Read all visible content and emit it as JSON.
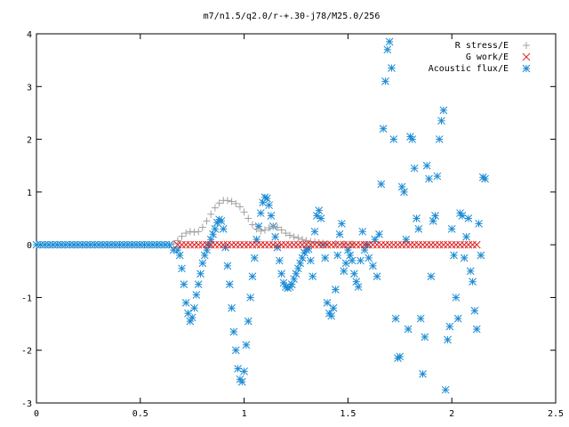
{
  "chart_data": {
    "type": "scatter",
    "title": "m7/n1.5/q2.0/r-+.30-j78/M25.0/256",
    "xlim": [
      0,
      2.5
    ],
    "ylim": [
      -3,
      4
    ],
    "x_ticks": [
      0,
      0.5,
      1,
      1.5,
      2,
      2.5
    ],
    "x_tick_labels": [
      "0",
      "0.5",
      "1",
      "1.5",
      "2",
      "2.5"
    ],
    "y_ticks": [
      -3,
      -2,
      -1,
      0,
      1,
      2,
      3,
      4
    ],
    "y_tick_labels": [
      "-3",
      "-2",
      "-1",
      "0",
      "1",
      "2",
      "3",
      "4"
    ],
    "grid": false,
    "legend_position": "top-right",
    "series": [
      {
        "name": "R stress/E",
        "marker": "plus",
        "color": "#a0a0a0",
        "points": [
          [
            0.66,
            0.02
          ],
          [
            0.68,
            0.08
          ],
          [
            0.7,
            0.16
          ],
          [
            0.72,
            0.22
          ],
          [
            0.74,
            0.25
          ],
          [
            0.76,
            0.24
          ],
          [
            0.78,
            0.25
          ],
          [
            0.8,
            0.33
          ],
          [
            0.82,
            0.45
          ],
          [
            0.84,
            0.58
          ],
          [
            0.86,
            0.7
          ],
          [
            0.88,
            0.79
          ],
          [
            0.9,
            0.84
          ],
          [
            0.92,
            0.84
          ],
          [
            0.94,
            0.82
          ],
          [
            0.96,
            0.78
          ],
          [
            0.98,
            0.72
          ],
          [
            1.0,
            0.62
          ],
          [
            1.02,
            0.5
          ],
          [
            1.04,
            0.38
          ],
          [
            1.06,
            0.3
          ],
          [
            1.08,
            0.26
          ],
          [
            1.1,
            0.28
          ],
          [
            1.12,
            0.32
          ],
          [
            1.14,
            0.35
          ],
          [
            1.16,
            0.33
          ],
          [
            1.18,
            0.28
          ],
          [
            1.2,
            0.22
          ],
          [
            1.22,
            0.18
          ],
          [
            1.24,
            0.15
          ],
          [
            1.26,
            0.13
          ],
          [
            1.28,
            0.1
          ],
          [
            1.3,
            0.08
          ],
          [
            1.32,
            0.06
          ],
          [
            1.34,
            0.05
          ],
          [
            1.36,
            0.04
          ],
          [
            1.38,
            0.03
          ],
          [
            1.4,
            0.02
          ],
          [
            1.44,
            0.02
          ],
          [
            1.48,
            0.01
          ],
          [
            1.52,
            0.01
          ]
        ]
      },
      {
        "name": "G work/E",
        "marker": "cross",
        "color": "#dd2222",
        "points": [
          [
            0.68,
            0.0
          ],
          [
            0.7,
            0.0
          ],
          [
            0.72,
            0.0
          ],
          [
            0.74,
            0.0
          ],
          [
            0.76,
            0.0
          ],
          [
            0.78,
            0.0
          ],
          [
            0.8,
            0.0
          ],
          [
            0.82,
            0.0
          ],
          [
            0.84,
            0.0
          ],
          [
            0.86,
            0.0
          ],
          [
            0.88,
            0.0
          ],
          [
            0.9,
            0.0
          ],
          [
            0.92,
            0.0
          ],
          [
            0.94,
            0.0
          ],
          [
            0.96,
            0.0
          ],
          [
            0.98,
            0.0
          ],
          [
            1.0,
            0.0
          ],
          [
            1.02,
            0.0
          ],
          [
            1.04,
            0.0
          ],
          [
            1.06,
            0.0
          ],
          [
            1.08,
            0.0
          ],
          [
            1.1,
            0.0
          ],
          [
            1.12,
            0.0
          ],
          [
            1.14,
            0.0
          ],
          [
            1.16,
            0.0
          ],
          [
            1.18,
            0.0
          ],
          [
            1.2,
            0.0
          ],
          [
            1.22,
            0.0
          ],
          [
            1.24,
            0.0
          ],
          [
            1.26,
            0.0
          ],
          [
            1.28,
            0.0
          ],
          [
            1.3,
            0.0
          ],
          [
            1.32,
            0.0
          ],
          [
            1.34,
            0.0
          ],
          [
            1.36,
            0.0
          ],
          [
            1.38,
            0.0
          ],
          [
            1.4,
            0.0
          ],
          [
            1.42,
            0.0
          ],
          [
            1.44,
            0.0
          ],
          [
            1.46,
            0.0
          ],
          [
            1.48,
            0.0
          ],
          [
            1.5,
            0.0
          ],
          [
            1.52,
            0.0
          ],
          [
            1.54,
            0.0
          ],
          [
            1.56,
            0.0
          ],
          [
            1.58,
            0.0
          ],
          [
            1.6,
            0.0
          ],
          [
            1.62,
            0.0
          ],
          [
            1.64,
            0.0
          ],
          [
            1.66,
            0.0
          ],
          [
            1.68,
            0.0
          ],
          [
            1.7,
            0.0
          ],
          [
            1.72,
            0.0
          ],
          [
            1.74,
            0.0
          ],
          [
            1.76,
            0.0
          ],
          [
            1.78,
            0.0
          ],
          [
            1.8,
            0.0
          ],
          [
            1.82,
            0.0
          ],
          [
            1.84,
            0.0
          ],
          [
            1.86,
            0.0
          ],
          [
            1.88,
            0.0
          ],
          [
            1.9,
            0.0
          ],
          [
            1.92,
            0.0
          ],
          [
            1.94,
            0.0
          ],
          [
            1.96,
            0.0
          ],
          [
            1.98,
            0.0
          ],
          [
            2.0,
            0.0
          ],
          [
            2.02,
            0.0
          ],
          [
            2.04,
            0.0
          ],
          [
            2.06,
            0.0
          ],
          [
            2.08,
            0.0
          ],
          [
            2.1,
            0.0
          ],
          [
            2.12,
            0.0
          ]
        ]
      },
      {
        "name": "Acoustic flux/E",
        "marker": "star",
        "color": "#1a8ad4",
        "points": [
          [
            0.0,
            0.0
          ],
          [
            0.02,
            0.0
          ],
          [
            0.04,
            0.0
          ],
          [
            0.06,
            0.0
          ],
          [
            0.08,
            0.0
          ],
          [
            0.1,
            0.0
          ],
          [
            0.12,
            0.0
          ],
          [
            0.14,
            0.0
          ],
          [
            0.16,
            0.0
          ],
          [
            0.18,
            0.0
          ],
          [
            0.2,
            0.0
          ],
          [
            0.22,
            0.0
          ],
          [
            0.24,
            0.0
          ],
          [
            0.26,
            0.0
          ],
          [
            0.28,
            0.0
          ],
          [
            0.3,
            0.0
          ],
          [
            0.32,
            0.0
          ],
          [
            0.34,
            0.0
          ],
          [
            0.36,
            0.0
          ],
          [
            0.38,
            0.0
          ],
          [
            0.4,
            0.0
          ],
          [
            0.42,
            0.0
          ],
          [
            0.44,
            0.0
          ],
          [
            0.46,
            0.0
          ],
          [
            0.48,
            0.0
          ],
          [
            0.5,
            0.0
          ],
          [
            0.52,
            0.0
          ],
          [
            0.54,
            0.0
          ],
          [
            0.56,
            0.0
          ],
          [
            0.58,
            0.0
          ],
          [
            0.6,
            0.0
          ],
          [
            0.62,
            0.0
          ],
          [
            0.64,
            0.0
          ],
          [
            0.66,
            -0.1
          ],
          [
            0.68,
            -0.1
          ],
          [
            0.69,
            -0.2
          ],
          [
            0.7,
            -0.45
          ],
          [
            0.71,
            -0.75
          ],
          [
            0.72,
            -1.1
          ],
          [
            0.73,
            -1.3
          ],
          [
            0.74,
            -1.45
          ],
          [
            0.75,
            -1.38
          ],
          [
            0.76,
            -1.2
          ],
          [
            0.77,
            -0.95
          ],
          [
            0.78,
            -0.75
          ],
          [
            0.79,
            -0.55
          ],
          [
            0.8,
            -0.35
          ],
          [
            0.81,
            -0.2
          ],
          [
            0.82,
            -0.1
          ],
          [
            0.83,
            0.0
          ],
          [
            0.84,
            0.1
          ],
          [
            0.85,
            0.2
          ],
          [
            0.86,
            0.3
          ],
          [
            0.87,
            0.42
          ],
          [
            0.88,
            0.48
          ],
          [
            0.89,
            0.45
          ],
          [
            0.9,
            0.3
          ],
          [
            0.91,
            -0.05
          ],
          [
            0.92,
            -0.4
          ],
          [
            0.93,
            -0.75
          ],
          [
            0.94,
            -1.2
          ],
          [
            0.95,
            -1.65
          ],
          [
            0.96,
            -2.0
          ],
          [
            0.97,
            -2.35
          ],
          [
            0.98,
            -2.55
          ],
          [
            0.99,
            -2.6
          ],
          [
            1.0,
            -2.4
          ],
          [
            1.01,
            -1.9
          ],
          [
            1.02,
            -1.45
          ],
          [
            1.03,
            -1.0
          ],
          [
            1.04,
            -0.6
          ],
          [
            1.05,
            -0.25
          ],
          [
            1.06,
            0.1
          ],
          [
            1.07,
            0.35
          ],
          [
            1.08,
            0.6
          ],
          [
            1.09,
            0.8
          ],
          [
            1.1,
            0.9
          ],
          [
            1.11,
            0.88
          ],
          [
            1.12,
            0.75
          ],
          [
            1.13,
            0.55
          ],
          [
            1.14,
            0.35
          ],
          [
            1.15,
            0.15
          ],
          [
            1.16,
            -0.05
          ],
          [
            1.17,
            -0.3
          ],
          [
            1.18,
            -0.55
          ],
          [
            1.19,
            -0.72
          ],
          [
            1.2,
            -0.8
          ],
          [
            1.21,
            -0.82
          ],
          [
            1.22,
            -0.8
          ],
          [
            1.23,
            -0.75
          ],
          [
            1.24,
            -0.65
          ],
          [
            1.25,
            -0.55
          ],
          [
            1.26,
            -0.45
          ],
          [
            1.27,
            -0.35
          ],
          [
            1.28,
            -0.25
          ],
          [
            1.29,
            -0.15
          ],
          [
            1.3,
            -0.1
          ],
          [
            1.31,
            -0.08
          ],
          [
            1.32,
            -0.3
          ],
          [
            1.33,
            -0.6
          ],
          [
            1.34,
            0.25
          ],
          [
            1.35,
            0.55
          ],
          [
            1.36,
            0.65
          ],
          [
            1.37,
            0.5
          ],
          [
            1.38,
            0.0
          ],
          [
            1.39,
            -0.25
          ],
          [
            1.4,
            -1.1
          ],
          [
            1.41,
            -1.3
          ],
          [
            1.42,
            -1.35
          ],
          [
            1.43,
            -1.2
          ],
          [
            1.44,
            -0.85
          ],
          [
            1.45,
            -0.2
          ],
          [
            1.46,
            0.2
          ],
          [
            1.47,
            0.4
          ],
          [
            1.48,
            -0.5
          ],
          [
            1.49,
            -0.35
          ],
          [
            1.5,
            -0.1
          ],
          [
            1.51,
            -0.2
          ],
          [
            1.52,
            -0.3
          ],
          [
            1.53,
            -0.55
          ],
          [
            1.54,
            -0.7
          ],
          [
            1.55,
            -0.8
          ],
          [
            1.56,
            -0.3
          ],
          [
            1.57,
            0.25
          ],
          [
            1.58,
            -0.1
          ],
          [
            1.59,
            0.0
          ],
          [
            1.6,
            -0.25
          ],
          [
            1.62,
            -0.4
          ],
          [
            1.63,
            0.1
          ],
          [
            1.64,
            -0.6
          ],
          [
            1.65,
            0.2
          ],
          [
            1.66,
            1.15
          ],
          [
            1.67,
            2.2
          ],
          [
            1.68,
            3.1
          ],
          [
            1.69,
            3.7
          ],
          [
            1.7,
            3.85
          ],
          [
            1.71,
            3.35
          ],
          [
            1.72,
            2.0
          ],
          [
            1.73,
            -1.4
          ],
          [
            1.74,
            -2.15
          ],
          [
            1.75,
            -2.12
          ],
          [
            1.76,
            1.1
          ],
          [
            1.77,
            1.0
          ],
          [
            1.78,
            0.1
          ],
          [
            1.79,
            -1.6
          ],
          [
            1.8,
            2.05
          ],
          [
            1.81,
            2.0
          ],
          [
            1.82,
            1.45
          ],
          [
            1.83,
            0.5
          ],
          [
            1.84,
            0.3
          ],
          [
            1.85,
            -1.4
          ],
          [
            1.86,
            -2.45
          ],
          [
            1.87,
            -1.75
          ],
          [
            1.88,
            1.5
          ],
          [
            1.89,
            1.25
          ],
          [
            1.9,
            -0.6
          ],
          [
            1.91,
            0.45
          ],
          [
            1.92,
            0.55
          ],
          [
            1.93,
            1.3
          ],
          [
            1.94,
            2.0
          ],
          [
            1.95,
            2.35
          ],
          [
            1.96,
            2.55
          ],
          [
            1.97,
            -2.75
          ],
          [
            1.98,
            -1.8
          ],
          [
            1.99,
            -1.55
          ],
          [
            2.0,
            0.3
          ],
          [
            2.01,
            -0.2
          ],
          [
            2.02,
            -1.0
          ],
          [
            2.03,
            -1.4
          ],
          [
            2.04,
            0.6
          ],
          [
            2.05,
            0.55
          ],
          [
            2.06,
            -0.25
          ],
          [
            2.07,
            0.15
          ],
          [
            2.08,
            0.5
          ],
          [
            2.09,
            -0.5
          ],
          [
            2.1,
            -0.7
          ],
          [
            2.11,
            -1.25
          ],
          [
            2.12,
            -1.6
          ],
          [
            2.13,
            0.4
          ],
          [
            2.14,
            -0.2
          ],
          [
            2.15,
            1.28
          ],
          [
            2.16,
            1.25
          ]
        ]
      }
    ]
  }
}
